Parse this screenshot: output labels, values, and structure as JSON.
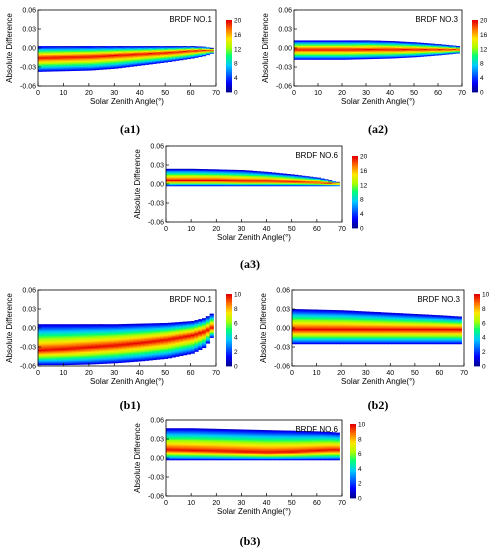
{
  "chart_data": [
    {
      "caption": "(a1)",
      "type": "heatmap",
      "title": "BRDF NO.1",
      "xlabel": "Solar Zenith Angle(°)",
      "ylabel": "Absolute Difference",
      "xlim": [
        0,
        70
      ],
      "ylim": [
        -0.06,
        0.06
      ],
      "x_ticks": [
        "0",
        "10",
        "20",
        "30",
        "40",
        "50",
        "60",
        "70"
      ],
      "y_ticks": [
        "0.06",
        "0.03",
        "0.00",
        "-0.03",
        "-0.06"
      ],
      "colorbar": {
        "min": 0,
        "max": 20,
        "ticks": [
          "20",
          "16",
          "12",
          "8",
          "4",
          "0"
        ]
      },
      "band": {
        "x": [
          0,
          10,
          20,
          30,
          40,
          50,
          60,
          65,
          68
        ],
        "top": [
          0.003,
          0.003,
          0.003,
          0.003,
          0.003,
          0.003,
          0.003,
          0.002,
          0.0
        ],
        "bottom": [
          -0.037,
          -0.036,
          -0.035,
          -0.032,
          -0.027,
          -0.022,
          -0.016,
          -0.012,
          -0.008
        ],
        "core": [
          -0.015,
          -0.014,
          -0.013,
          -0.011,
          -0.009,
          -0.007,
          -0.004,
          -0.003,
          -0.003
        ]
      }
    },
    {
      "caption": "(a2)",
      "type": "heatmap",
      "title": "BRDF NO.3",
      "xlabel": "Solar Zenith Angle(°)",
      "ylabel": "Absolute Difference",
      "xlim": [
        0,
        70
      ],
      "ylim": [
        -0.06,
        0.06
      ],
      "x_ticks": [
        "0",
        "10",
        "20",
        "30",
        "40",
        "50",
        "60",
        "70"
      ],
      "y_ticks": [
        "0.06",
        "0.03",
        "0.00",
        "-0.03",
        "-0.06"
      ],
      "colorbar": {
        "min": 0,
        "max": 20,
        "ticks": [
          "20",
          "16",
          "12",
          "8",
          "4",
          "0"
        ]
      },
      "band": {
        "x": [
          0,
          10,
          20,
          30,
          40,
          50,
          60,
          68
        ],
        "top": [
          0.012,
          0.012,
          0.012,
          0.012,
          0.011,
          0.009,
          0.006,
          0.003
        ],
        "bottom": [
          -0.018,
          -0.018,
          -0.018,
          -0.017,
          -0.016,
          -0.014,
          -0.011,
          -0.008
        ],
        "core": [
          -0.002,
          -0.002,
          -0.002,
          -0.002,
          -0.002,
          -0.002,
          -0.002,
          -0.002
        ]
      }
    },
    {
      "caption": "(a3)",
      "type": "heatmap",
      "title": "BRDF NO.6",
      "xlabel": "Solar Zenith Angle(°)",
      "ylabel": "Absolute Difference",
      "xlim": [
        0,
        70
      ],
      "ylim": [
        -0.06,
        0.06
      ],
      "x_ticks": [
        "0",
        "10",
        "20",
        "30",
        "40",
        "50",
        "60",
        "70"
      ],
      "y_ticks": [
        "0.06",
        "0.03",
        "0.00",
        "-0.03",
        "-0.06"
      ],
      "colorbar": {
        "min": 0,
        "max": 20,
        "ticks": [
          "20",
          "16",
          "12",
          "8",
          "4",
          "0"
        ]
      },
      "band": {
        "x": [
          0,
          10,
          20,
          30,
          40,
          50,
          60,
          68
        ],
        "top": [
          0.024,
          0.024,
          0.023,
          0.022,
          0.019,
          0.015,
          0.01,
          0.003
        ],
        "bottom": [
          -0.003,
          -0.003,
          -0.003,
          -0.003,
          -0.003,
          -0.003,
          -0.003,
          -0.003
        ],
        "core": [
          0.006,
          0.006,
          0.006,
          0.005,
          0.005,
          0.004,
          0.003,
          0.001
        ]
      }
    },
    {
      "caption": "(b1)",
      "type": "heatmap",
      "title": "BRDF NO.1",
      "xlabel": "Solar Zenith Angle(°)",
      "ylabel": "Absolute Difference",
      "xlim": [
        0,
        70
      ],
      "ylim": [
        -0.06,
        0.06
      ],
      "x_ticks": [
        "0",
        "10",
        "20",
        "30",
        "40",
        "50",
        "60",
        "70"
      ],
      "y_ticks": [
        "0.06",
        "0.03",
        "0.00",
        "-0.03",
        "-0.06"
      ],
      "colorbar": {
        "min": 0,
        "max": 10,
        "ticks": [
          "10",
          "8",
          "6",
          "4",
          "2",
          "0"
        ]
      },
      "band": {
        "x": [
          0,
          10,
          20,
          30,
          40,
          50,
          60,
          65,
          68
        ],
        "top": [
          0.006,
          0.006,
          0.006,
          0.006,
          0.007,
          0.008,
          0.011,
          0.016,
          0.024
        ],
        "bottom": [
          -0.058,
          -0.058,
          -0.057,
          -0.055,
          -0.052,
          -0.048,
          -0.04,
          -0.03,
          -0.012
        ],
        "core": [
          -0.035,
          -0.033,
          -0.03,
          -0.027,
          -0.023,
          -0.018,
          -0.011,
          -0.005,
          0.002
        ]
      }
    },
    {
      "caption": "(b2)",
      "type": "heatmap",
      "title": "BRDF NO.3",
      "xlabel": "Solar Zenith Angle(°)",
      "ylabel": "Absolute Difference",
      "xlim": [
        0,
        70
      ],
      "ylim": [
        -0.06,
        0.06
      ],
      "x_ticks": [
        "0",
        "10",
        "20",
        "30",
        "40",
        "50",
        "60",
        "70"
      ],
      "y_ticks": [
        "0.06",
        "0.03",
        "0.00",
        "-0.03",
        "-0.06"
      ],
      "colorbar": {
        "min": 0,
        "max": 10,
        "ticks": [
          "10",
          "8",
          "6",
          "4",
          "2",
          "0"
        ]
      },
      "band": {
        "x": [
          0,
          10,
          20,
          30,
          40,
          50,
          60,
          68
        ],
        "top": [
          0.03,
          0.029,
          0.028,
          0.026,
          0.024,
          0.022,
          0.02,
          0.018
        ],
        "bottom": [
          -0.025,
          -0.025,
          -0.025,
          -0.025,
          -0.025,
          -0.025,
          -0.025,
          -0.025
        ],
        "core": [
          -0.002,
          -0.002,
          -0.002,
          -0.002,
          -0.002,
          -0.002,
          -0.002,
          -0.002
        ]
      }
    },
    {
      "caption": "(b3)",
      "type": "heatmap",
      "title": "BRDF NO.6",
      "xlabel": "Solar Zenith Angle(°)",
      "ylabel": "Absolute Difference",
      "xlim": [
        0,
        70
      ],
      "ylim": [
        -0.06,
        0.06
      ],
      "x_ticks": [
        "0",
        "10",
        "20",
        "30",
        "40",
        "50",
        "60",
        "70"
      ],
      "y_ticks": [
        "0.06",
        "0.03",
        "0.00",
        "-0.03",
        "-0.06"
      ],
      "colorbar": {
        "min": 0,
        "max": 10,
        "ticks": [
          "10",
          "8",
          "6",
          "4",
          "2",
          "0"
        ]
      },
      "band": {
        "x": [
          0,
          10,
          20,
          30,
          40,
          50,
          60,
          65,
          68
        ],
        "top": [
          0.047,
          0.047,
          0.046,
          0.045,
          0.044,
          0.043,
          0.042,
          0.041,
          0.04
        ],
        "bottom": [
          -0.003,
          -0.003,
          -0.003,
          -0.003,
          -0.003,
          -0.003,
          -0.003,
          -0.003,
          -0.003
        ],
        "core": [
          0.013,
          0.012,
          0.011,
          0.01,
          0.009,
          0.01,
          0.012,
          0.013,
          0.013
        ]
      }
    }
  ]
}
